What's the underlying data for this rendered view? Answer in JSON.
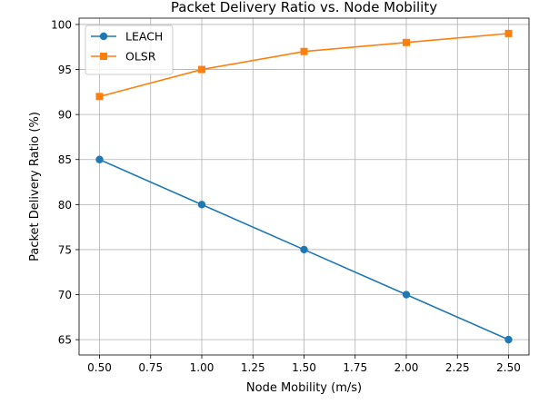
{
  "chart_data": {
    "type": "line",
    "title": "Packet Delivery Ratio vs. Node Mobility",
    "xlabel": "Node Mobility (m/s)",
    "ylabel": "Packet Delivery Ratio (%)",
    "xlim": [
      0.4,
      2.6
    ],
    "ylim": [
      63.3,
      100.7
    ],
    "x_ticks": [
      "0.50",
      "0.75",
      "1.00",
      "1.25",
      "1.50",
      "1.75",
      "2.00",
      "2.25",
      "2.50"
    ],
    "y_ticks": [
      "65",
      "70",
      "75",
      "80",
      "85",
      "90",
      "95",
      "100"
    ],
    "grid": true,
    "legend_position": "top-left",
    "x": [
      0.5,
      1.0,
      1.5,
      2.0,
      2.5
    ],
    "series": [
      {
        "name": "LEACH",
        "values": [
          85,
          80,
          75,
          70,
          65
        ],
        "color": "#1f77b4",
        "marker": "circle"
      },
      {
        "name": "OLSR",
        "values": [
          92,
          95,
          97,
          98,
          99
        ],
        "color": "#ff7f0e",
        "marker": "square"
      }
    ]
  }
}
